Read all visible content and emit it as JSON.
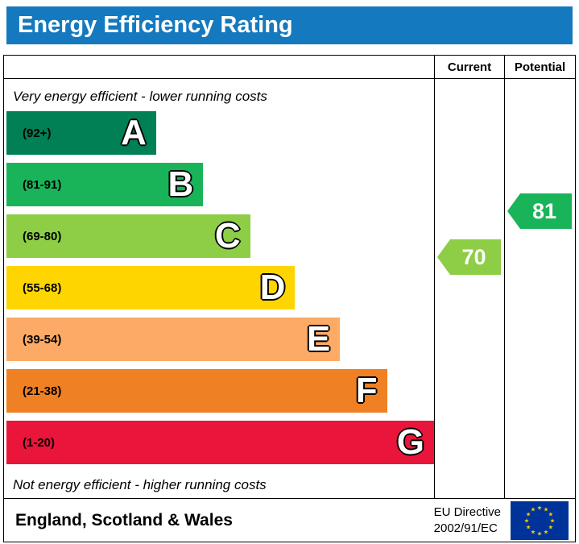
{
  "header": {
    "title": "Energy Efficiency Rating"
  },
  "table": {
    "current_label": "Current",
    "potential_label": "Potential",
    "top_note": "Very energy efficient - lower running costs",
    "bottom_note": "Not energy efficient - higher running costs"
  },
  "bands": [
    {
      "letter": "A",
      "range": "(92+)",
      "color": "#008054",
      "width_pct": 35
    },
    {
      "letter": "B",
      "range": "(81-91)",
      "color": "#19b459",
      "width_pct": 46
    },
    {
      "letter": "C",
      "range": "(69-80)",
      "color": "#8dce46",
      "width_pct": 57
    },
    {
      "letter": "D",
      "range": "(55-68)",
      "color": "#ffd500",
      "width_pct": 67.5
    },
    {
      "letter": "E",
      "range": "(39-54)",
      "color": "#fcaa65",
      "width_pct": 78
    },
    {
      "letter": "F",
      "range": "(21-38)",
      "color": "#ef8023",
      "width_pct": 89
    },
    {
      "letter": "G",
      "range": "(1-20)",
      "color": "#e9153b",
      "width_pct": 100
    }
  ],
  "ratings": {
    "current": {
      "value": "70",
      "color": "#8dce46",
      "band": "C"
    },
    "potential": {
      "value": "81",
      "color": "#19b459",
      "band": "B"
    }
  },
  "footer": {
    "region": "England, Scotland & Wales",
    "directive": [
      "EU Directive",
      "2002/91/EC"
    ]
  },
  "colors": {
    "header_bg": "#1579bf",
    "flag_bg": "#003399",
    "flag_stars": "#ffcc00"
  },
  "chart_data": {
    "type": "bar",
    "title": "Energy Efficiency Rating",
    "categories": [
      "A",
      "B",
      "C",
      "D",
      "E",
      "F",
      "G"
    ],
    "band_ranges": [
      "(92+)",
      "(81-91)",
      "(69-80)",
      "(55-68)",
      "(39-54)",
      "(21-38)",
      "(1-20)"
    ],
    "band_colors": [
      "#008054",
      "#19b459",
      "#8dce46",
      "#ffd500",
      "#fcaa65",
      "#ef8023",
      "#e9153b"
    ],
    "bar_lengths_pct": [
      35,
      46,
      57,
      67.5,
      78,
      89,
      100
    ],
    "current": {
      "value": 70,
      "band": "C"
    },
    "potential": {
      "value": 81,
      "band": "B"
    },
    "scale": [
      1,
      100
    ],
    "legend_position": "top-right-columns",
    "grid": false
  }
}
